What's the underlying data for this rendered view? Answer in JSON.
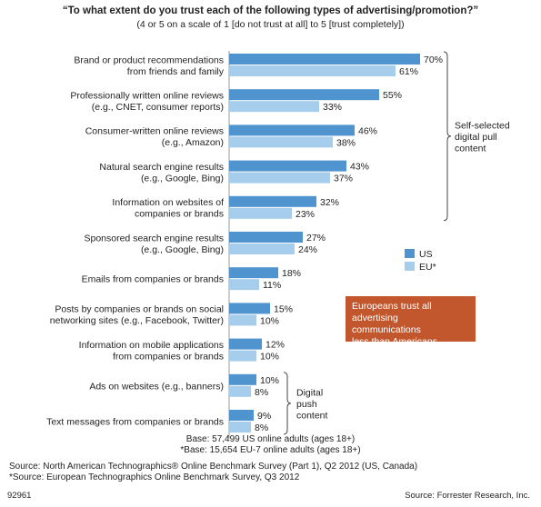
{
  "chart_data": {
    "type": "bar",
    "orientation": "horizontal",
    "title": "“To what extent do you trust each of the following types of advertising/promotion?”",
    "subtitle": "(4 or 5 on a scale of 1 [do not trust at all] to 5 [trust completely])",
    "categories": [
      [
        "Brand or product recommendations",
        "from friends and family"
      ],
      [
        "Professionally written online reviews",
        "(e.g., CNET, consumer reports)"
      ],
      [
        "Consumer-written online reviews",
        "(e.g., Amazon)"
      ],
      [
        "Natural search engine results",
        "(e.g., Google, Bing)"
      ],
      [
        "Information on websites of",
        "companies or brands"
      ],
      [
        "Sponsored search engine results",
        "(e.g., Google, Bing)"
      ],
      [
        "Emails from companies or brands"
      ],
      [
        "Posts by companies or brands on social",
        "networking sites (e.g., Facebook, Twitter)"
      ],
      [
        "Information on mobile applications",
        "from companies or brands"
      ],
      [
        "Ads on websites (e.g., banners)"
      ],
      [
        "Text messages from companies or brands"
      ]
    ],
    "series": [
      {
        "name": "US",
        "color": "#4f93cf",
        "values": [
          70,
          55,
          46,
          43,
          32,
          27,
          18,
          15,
          12,
          10,
          9
        ]
      },
      {
        "name": "EU*",
        "color": "#a7cdec",
        "values": [
          61,
          33,
          38,
          37,
          23,
          24,
          11,
          10,
          10,
          8,
          8
        ]
      }
    ],
    "value_suffix": "%",
    "legend_position": "right",
    "grid": false,
    "brackets": [
      {
        "label": [
          "Self-selected",
          "digital pull",
          "content"
        ],
        "from_category": 0,
        "to_category": 4
      },
      {
        "label": [
          "Digital",
          "push",
          "content"
        ],
        "from_category": 9,
        "to_category": 10
      }
    ]
  },
  "callout": "Europeans trust all\nadvertising communications\nless than Americans.",
  "base_lines": [
    "Base: 57,499 US online adults (ages 18+)",
    "*Base: 15,654 EU-7 online adults (ages 18+)"
  ],
  "source_lines": [
    "Source: North American Technographics® Online Benchmark Survey (Part 1), Q2 2012 (US, Canada)",
    "*Source: European Technographics Online Benchmark Survey, Q3 2012"
  ],
  "figure_id": "92961",
  "credit": "Source: Forrester Research, Inc."
}
